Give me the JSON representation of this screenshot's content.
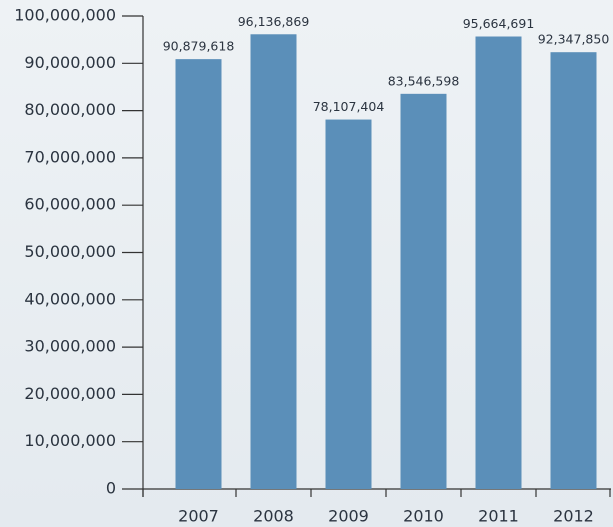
{
  "chart_data": {
    "type": "bar",
    "categories": [
      "2007",
      "2008",
      "2009",
      "2010",
      "2011",
      "2012"
    ],
    "values": [
      90879618,
      96136869,
      78107404,
      83546598,
      95664691,
      92347850
    ],
    "value_labels": [
      "90,879,618",
      "96,136,869",
      "78,107,404",
      "83,546,598",
      "95,664,691",
      "92,347,850"
    ],
    "color": "#5b8fb9",
    "ylim": [
      0,
      100000000
    ],
    "yticks": [
      0,
      {
        "value": 10000000,
        "label": "10,000,000"
      },
      {
        "value": 20000000,
        "label": "20,000,000"
      },
      {
        "value": 30000000,
        "label": "30,000,000"
      },
      {
        "value": 40000000,
        "label": "40,000,000"
      },
      {
        "value": 50000000,
        "label": "50,000,000"
      },
      {
        "value": 60000000,
        "label": "60,000,000"
      },
      {
        "value": 70000000,
        "label": "70,000,000"
      },
      {
        "value": 80000000,
        "label": "80,000,000"
      },
      {
        "value": 90000000,
        "label": "90,000,000"
      },
      {
        "value": 100000000,
        "label": "100,000,000"
      }
    ],
    "grid": false
  }
}
